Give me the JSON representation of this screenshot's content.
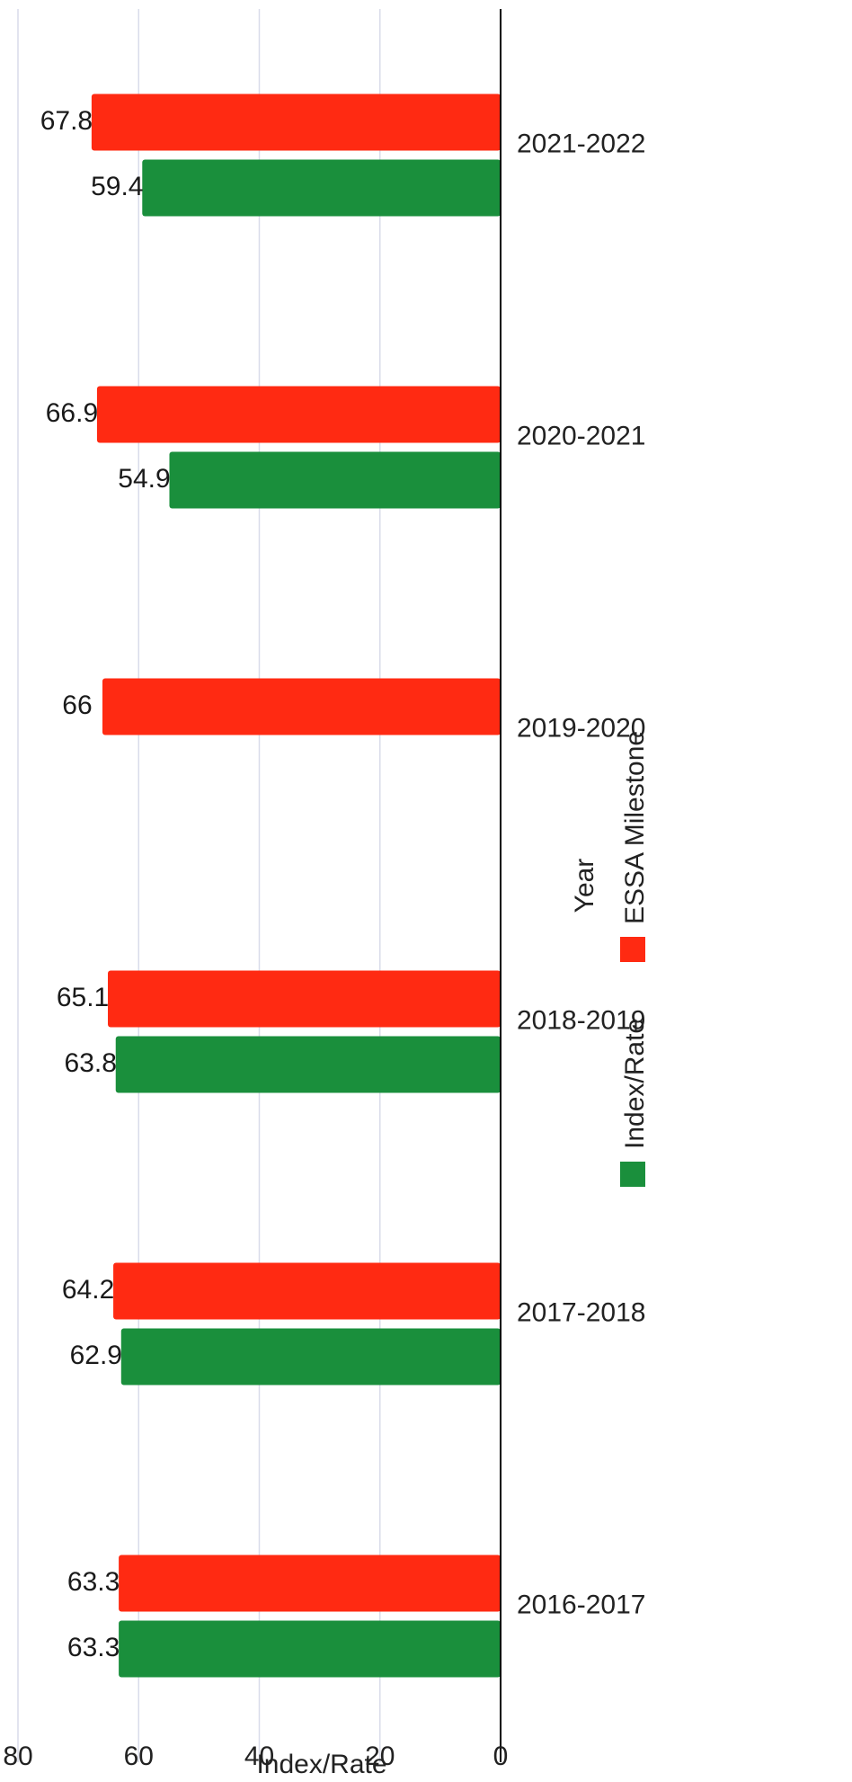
{
  "chart_data": {
    "type": "bar",
    "categories": [
      "2016-2017",
      "2017-2018",
      "2018-2019",
      "2019-2020",
      "2020-2021",
      "2021-2022"
    ],
    "series": [
      {
        "name": "Index/Rate",
        "color": "#1a8f3c",
        "values": [
          63.3,
          62.9,
          63.8,
          null,
          54.9,
          59.4
        ]
      },
      {
        "name": "ESSA Milestone",
        "color": "#ff2a12",
        "values": [
          63.3,
          64.2,
          65.1,
          66,
          66.9,
          67.8
        ]
      }
    ],
    "xlabel": "Year",
    "ylabel": "Index/Rate",
    "ylim": [
      0,
      80
    ],
    "yticks": [
      0,
      20,
      40,
      60,
      80
    ],
    "grid": true,
    "legend_position": "bottom",
    "orientation": "rotated-page"
  }
}
